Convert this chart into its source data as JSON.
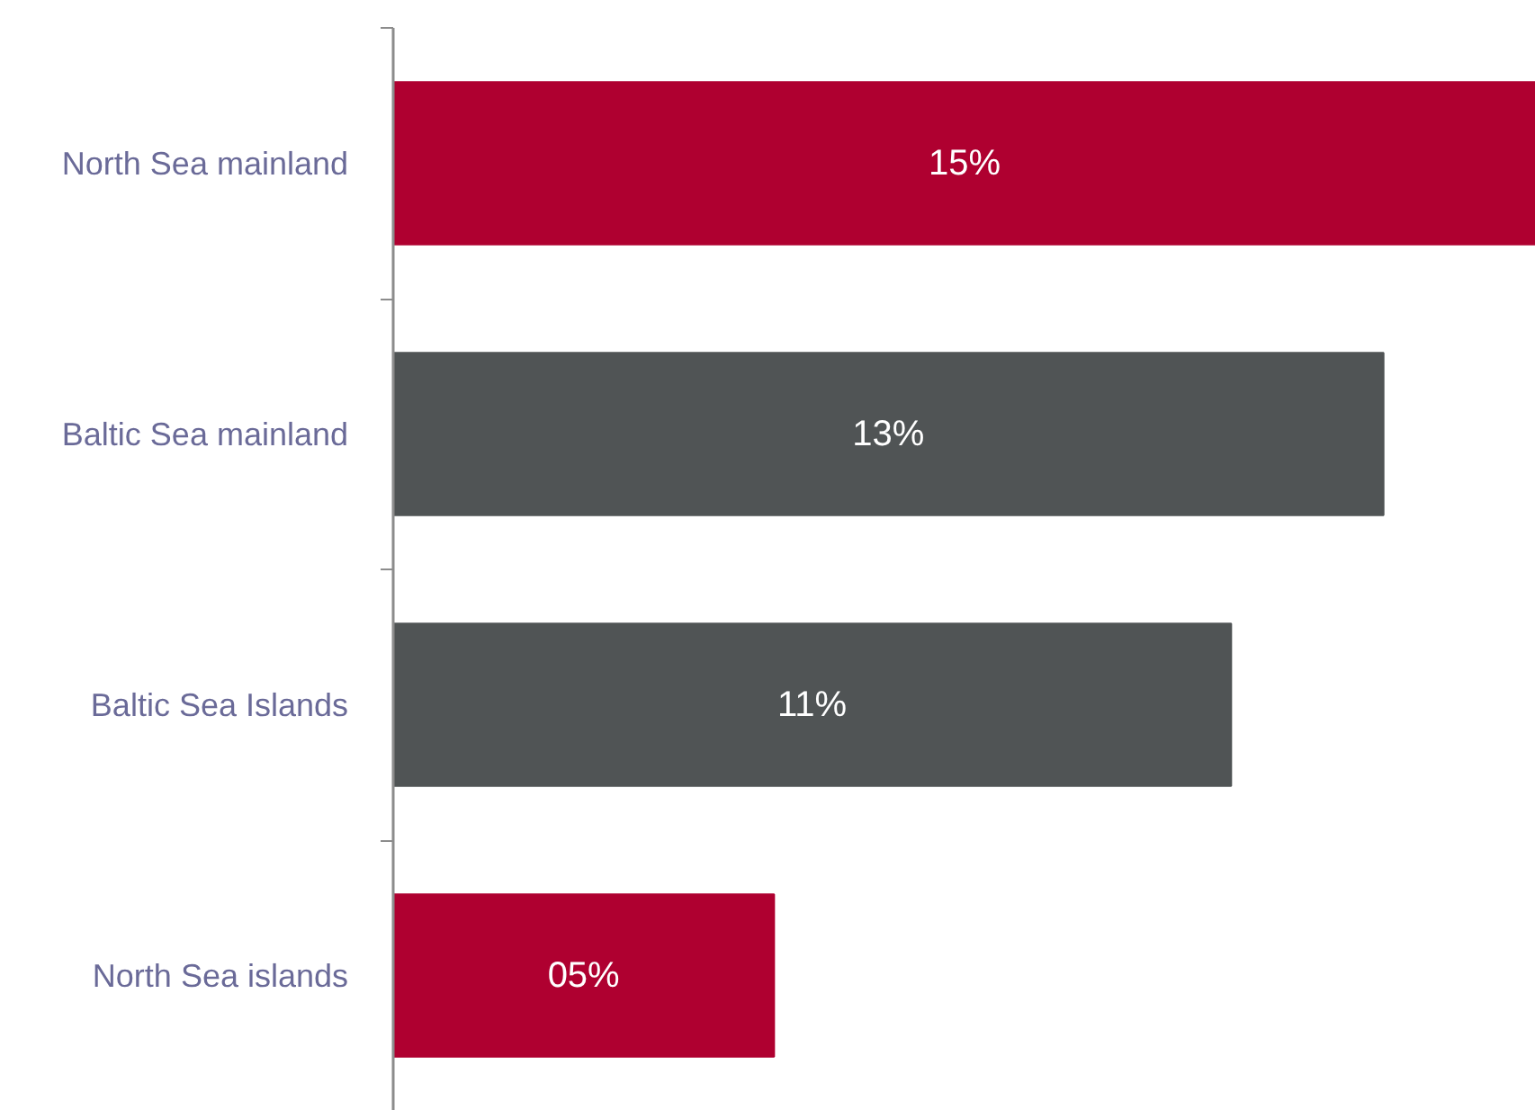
{
  "chart_data": {
    "type": "bar",
    "orientation": "horizontal",
    "categories": [
      "North Sea mainland",
      "Baltic Sea mainland",
      "Baltic Sea Islands",
      "North Sea islands"
    ],
    "values": [
      15,
      13,
      11,
      5
    ],
    "colors": [
      "#af0030",
      "#505455",
      "#505455",
      "#af0030"
    ],
    "value_labels": [
      "15%",
      "13%",
      "11%",
      "05%"
    ],
    "xlim": [
      0,
      15
    ],
    "tick_labels": "y",
    "grid": false
  }
}
